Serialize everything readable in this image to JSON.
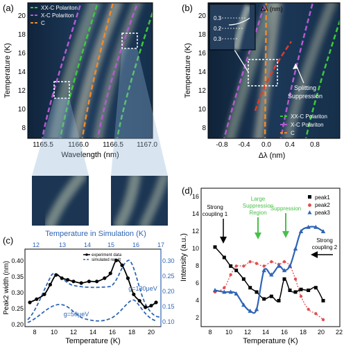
{
  "panels": {
    "a": {
      "label": "(a)",
      "xlabel": "Wavelength (nm)",
      "ylabel": "Temperature (K)",
      "xticks": [
        "1165.5",
        "1166.0",
        "1166.5",
        "1167.0"
      ],
      "yticks": [
        "8",
        "10",
        "12",
        "14",
        "16",
        "18",
        "20"
      ],
      "legend": [
        "XX-C Polariton",
        "X-C Polariton",
        "C"
      ]
    },
    "b": {
      "label": "(b)",
      "xlabel": "Δλ (nm)",
      "ylabel": "Temperature (K)",
      "xticks": [
        "-0.8",
        "-0.4",
        "0.0",
        "0.4",
        "0.8"
      ],
      "yticks": [
        "8",
        "10",
        "12",
        "14",
        "16",
        "18",
        "20"
      ],
      "legend": [
        "XX-C Polariton",
        "X-C Polariton",
        "C"
      ],
      "inset_title": "Δλ (nm)",
      "inset_ticks": [
        "0.3",
        "0.2",
        "0.3"
      ],
      "annotation": [
        "Splitting",
        "Suppression"
      ]
    },
    "c": {
      "label": "(c)",
      "top_axis_label": "Temperature in Simulation (K)",
      "top_ticks": [
        "12",
        "13",
        "14",
        "15",
        "16",
        "17"
      ],
      "xlabel": "Temperature (K)",
      "ylabel": "Peak2 width (nm)",
      "xticks": [
        "8",
        "10",
        "12",
        "14",
        "16",
        "18",
        "20"
      ],
      "yticks_left": [
        "0.20",
        "0.25",
        "0.30",
        "0.35",
        "0.40"
      ],
      "yticks_right": [
        "0.10",
        "0.15",
        "0.20",
        "0.25",
        "0.30"
      ],
      "legend": [
        "experiment data",
        "simulated result"
      ],
      "annot_g130": "g=130μeV",
      "annot_g50": "g=50μeV"
    },
    "d": {
      "label": "(d)",
      "xlabel": "Temperature (K)",
      "ylabel": "Intensity (a.u.)",
      "xticks": [
        "8",
        "10",
        "12",
        "14",
        "16",
        "18",
        "20",
        "22"
      ],
      "yticks": [
        "2",
        "4",
        "6",
        "8",
        "10",
        "12",
        "14",
        "16"
      ],
      "legend": [
        "peak1",
        "peak2",
        "peak3"
      ],
      "annot_strong1": [
        "Strong",
        "coupling 1"
      ],
      "annot_large": [
        "Large",
        "Suppression",
        "Region"
      ],
      "annot_supp": "Suppression",
      "annot_strong2": [
        "Strong",
        "coupling 2"
      ]
    }
  },
  "colors": {
    "xx_c": "#3ec83e",
    "x_c": "#b45ad2",
    "c": "#f08a2a",
    "red": "#e03a2a",
    "blue": "#2e64b4",
    "green_text": "#48c048",
    "peak1": "#000000",
    "peak2": "#e05050",
    "peak3": "#2e64b4"
  },
  "chart_data": [
    {
      "panel": "c",
      "type": "line",
      "xlim": [
        7,
        21
      ],
      "ylim": [
        0.18,
        0.42
      ],
      "series": [
        {
          "name": "experiment data",
          "x": [
            7.5,
            8.2,
            9.0,
            9.6,
            10.2,
            10.8,
            11.4,
            12.0,
            12.8,
            13.6,
            14.4,
            15.2,
            15.8,
            16.4,
            17.0,
            17.6,
            18.2,
            18.8,
            19.4,
            20.0,
            20.5
          ],
          "y": [
            0.255,
            0.265,
            0.28,
            0.31,
            0.34,
            0.33,
            0.325,
            0.32,
            0.315,
            0.32,
            0.32,
            0.33,
            0.345,
            0.385,
            0.37,
            0.33,
            0.28,
            0.26,
            0.24,
            0.245,
            0.255
          ]
        }
      ]
    },
    {
      "panel": "d",
      "type": "line",
      "xlim": [
        7,
        22
      ],
      "ylim": [
        1,
        17
      ],
      "series": [
        {
          "name": "peak1",
          "x": [
            8.5,
            9.5,
            10.2,
            10.8,
            11.6,
            12.3,
            13.0,
            13.8,
            14.6,
            15.4,
            16.0,
            16.6,
            17.2,
            17.8,
            18.6,
            19.4,
            20.2
          ],
          "y": [
            10.2,
            9.0,
            8.0,
            7.5,
            6.5,
            5.5,
            5.0,
            4.2,
            4.5,
            4.0,
            6.5,
            5.2,
            5.0,
            5.3,
            5.2,
            5.5,
            4.0
          ]
        },
        {
          "name": "peak2",
          "x": [
            8.5,
            9.5,
            10.2,
            10.8,
            11.6,
            12.3,
            13.0,
            13.8,
            14.6,
            15.4,
            16.0,
            16.6,
            17.2,
            17.8,
            18.6,
            19.4,
            20.2
          ],
          "y": [
            5.0,
            5.5,
            7.0,
            8.0,
            8.0,
            8.5,
            8.3,
            8.0,
            8.5,
            8.2,
            8.5,
            8.0,
            6.5,
            4.5,
            3.0,
            2.5,
            1.8
          ]
        },
        {
          "name": "peak3",
          "x": [
            8.5,
            9.5,
            10.2,
            10.8,
            11.6,
            12.3,
            13.0,
            13.8,
            14.6,
            15.4,
            16.0,
            16.6,
            17.2,
            17.8,
            18.6,
            19.4,
            20.2
          ],
          "y": [
            5.2,
            5.0,
            5.0,
            4.8,
            3.5,
            2.8,
            3.0,
            7.5,
            7.0,
            8.0,
            7.5,
            8.0,
            10.0,
            12.0,
            12.5,
            12.5,
            12.0
          ]
        }
      ]
    }
  ]
}
